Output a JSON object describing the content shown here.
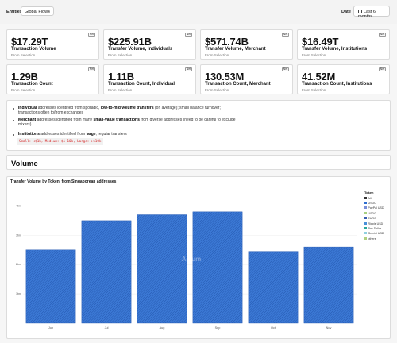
{
  "header": {
    "entities_label": "Entities",
    "entities_value": "Global Flows",
    "date_label": "Date",
    "date_value": "Last 6 months"
  },
  "kpi_badge": "Net",
  "kpis": [
    {
      "value": "$17.29T",
      "title": "Transaction Volume",
      "subtitle": "From Selection"
    },
    {
      "value": "$225.91B",
      "title": "Transfer Volume, Individuals",
      "subtitle": "From Selection"
    },
    {
      "value": "$571.74B",
      "title": "Transfer Volume, Merchant",
      "subtitle": "From Selection"
    },
    {
      "value": "$16.49T",
      "title": "Transfer Volume, Institutions",
      "subtitle": "From Selection"
    },
    {
      "value": "1.29B",
      "title": "Transaction Count",
      "subtitle": "From Selection"
    },
    {
      "value": "1.11B",
      "title": "Transaction Count, Individual",
      "subtitle": "From Selection"
    },
    {
      "value": "130.53M",
      "title": "Transaction Count, Merchant",
      "subtitle": "From Selection"
    },
    {
      "value": "41.52M",
      "title": "Transaction Count, Institutions",
      "subtitle": "From Selection"
    }
  ],
  "notes": {
    "n1_a": "Individual",
    "n1_b": " addresses identified from sporadic, ",
    "n1_c": "low-to-mid volume transfers",
    "n1_d": " (on average); small balance turnover; transactions often to/from exchanges",
    "n2_a": "Merchant",
    "n2_b": " addresses identified from many ",
    "n2_c": "small-value transactions",
    "n2_d": " from diverse addresses (need to be careful to exclude mixers)",
    "n3_a": "Institutions",
    "n3_b": " addresses identified from ",
    "n3_c": "large",
    "n3_d": ", regular transfers",
    "code": "Small: <$1k, Medium: $1-10k, Large: >$10k"
  },
  "volume_section_title": "Volume",
  "chart_data": {
    "type": "bar",
    "title": "Transfer Volume by Token, from Singaporean addresses",
    "categories": [
      "Jun",
      "Jul",
      "Aug",
      "Sep",
      "Oct",
      "Nov"
    ],
    "series": [
      {
        "name": "USDC",
        "values": [
          2.5,
          3.5,
          3.7,
          3.8,
          2.45,
          2.6
        ],
        "color": "#2f6fd0"
      }
    ],
    "y_ticks": [
      "4bn",
      "3bn",
      "2bn",
      "1bn"
    ],
    "ylim": [
      0,
      4.5
    ],
    "legend": {
      "title": "Token",
      "items": [
        {
          "label": "All",
          "color": "#333333"
        },
        {
          "label": "USDC",
          "color": "#2f6fd0"
        },
        {
          "label": "PayPal USD",
          "color": "#7a8fd8"
        },
        {
          "label": "USDG",
          "color": "#a8d080"
        },
        {
          "label": "EURC",
          "color": "#3a5fb0"
        },
        {
          "label": "Ripple USD",
          "color": "#4a90d9"
        },
        {
          "label": "Pax Dollar",
          "color": "#2aa89a"
        },
        {
          "label": "Gemini USD",
          "color": "#8fd0e0"
        },
        {
          "label": "others",
          "color": "#b0d080"
        }
      ],
      "position": "right"
    },
    "watermark": "Allium"
  }
}
